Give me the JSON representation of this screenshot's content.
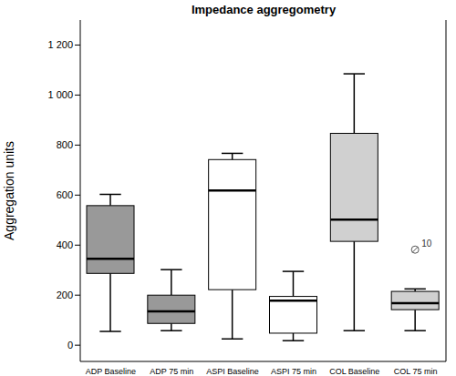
{
  "chart_data": {
    "type": "box",
    "title": "Impedance aggregometry",
    "y_label": "Aggregation units",
    "categories": [
      "ADP Baseline",
      "ADP 75 min",
      "ASPI Baseline",
      "ASPI 75 min",
      "COL Baseline",
      "COL 75 min"
    ],
    "min": [
      55,
      58,
      25,
      18,
      58,
      58
    ],
    "q1": [
      287,
      87,
      222,
      48,
      415,
      142
    ],
    "median": [
      345,
      135,
      618,
      178,
      502,
      168
    ],
    "q3": [
      558,
      200,
      742,
      195,
      847,
      215
    ],
    "max": [
      603,
      302,
      767,
      295,
      1085,
      225
    ],
    "outliers": [
      [],
      [],
      [],
      [],
      [],
      [
        {
          "value": 382,
          "label": "10"
        }
      ]
    ],
    "colors": [
      "#999999",
      "#999999",
      "#ffffff",
      "#ffffff",
      "#d0d0d0",
      "#d0d0d0"
    ],
    "ylim": [
      -65,
      1300
    ],
    "yticks": [
      0,
      200,
      400,
      600,
      800,
      {
        "value": 1000,
        "label": "1 000"
      },
      {
        "value": 1200,
        "label": "1 200"
      }
    ],
    "grid": false
  }
}
